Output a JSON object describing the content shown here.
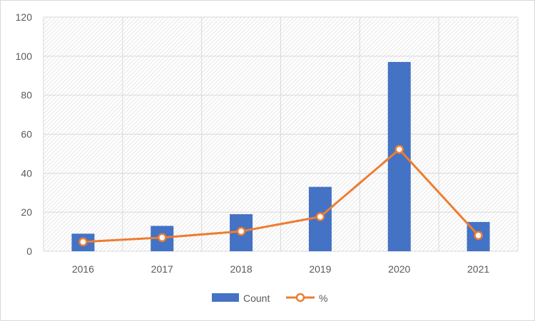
{
  "chart_data": {
    "type": "bar",
    "categories": [
      "2016",
      "2017",
      "2018",
      "2019",
      "2020",
      "2021"
    ],
    "series": [
      {
        "name": "Count",
        "type": "bar",
        "values": [
          9,
          13,
          19,
          33,
          97,
          15
        ]
      },
      {
        "name": "%",
        "type": "line",
        "values": [
          4.8,
          7,
          10.2,
          17.7,
          52.2,
          8.1
        ]
      }
    ],
    "ylim": [
      0,
      120
    ],
    "yticks": [
      0,
      20,
      40,
      60,
      80,
      100,
      120
    ],
    "grid": true,
    "legend_position": "bottom",
    "colors": {
      "bar": "#4472c4",
      "line": "#ed7d31",
      "grid": "#d9d9d9",
      "plot_hatch": "#bfbfbf"
    }
  }
}
